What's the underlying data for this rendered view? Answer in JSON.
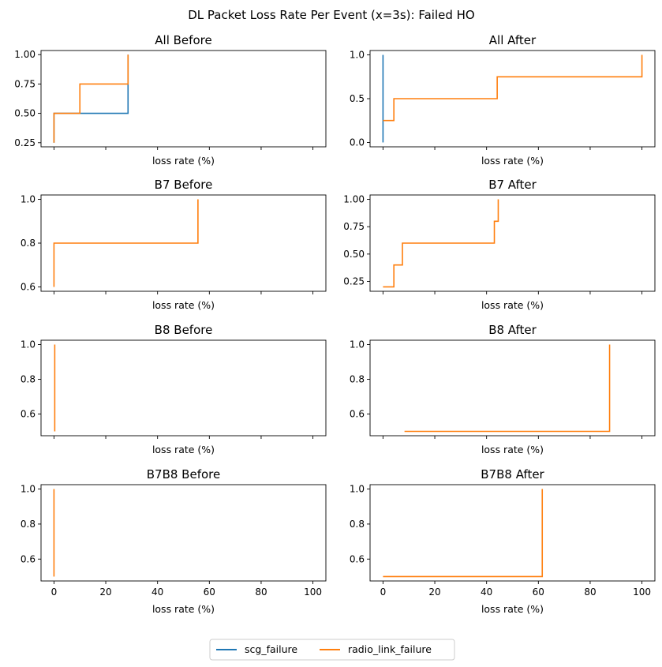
{
  "figure": {
    "title": "DL Packet Loss Rate Per Event (x=3s): Failed HO"
  },
  "legend": [
    {
      "name": "scg_failure",
      "color": "#1f77b4"
    },
    {
      "name": "radio_link_failure",
      "color": "#ff7f0e"
    }
  ],
  "chart_data": [
    {
      "type": "line",
      "title": "All Before",
      "xlabel": "loss rate (%)",
      "ylabel": "",
      "xlim": [
        -5,
        105
      ],
      "ylim": [
        0.215,
        1.035
      ],
      "xticks": [
        0,
        20,
        40,
        60,
        80,
        100
      ],
      "show_xticklabels": false,
      "yticks": [
        0.25,
        0.5,
        0.75,
        1.0
      ],
      "ytick_labels": [
        "0.25",
        "0.50",
        "0.75",
        "1.00"
      ],
      "series": [
        {
          "name": "scg_failure",
          "color": "#1f77b4",
          "x": [
            0,
            0,
            28.6,
            28.6
          ],
          "y": [
            0.25,
            0.5,
            0.5,
            1.0
          ]
        },
        {
          "name": "radio_link_failure",
          "color": "#ff7f0e",
          "x": [
            0,
            0,
            10,
            10,
            28.6,
            28.6
          ],
          "y": [
            0.25,
            0.5,
            0.5,
            0.75,
            0.75,
            1.0
          ]
        }
      ]
    },
    {
      "type": "line",
      "title": "All After",
      "xlabel": "loss rate (%)",
      "ylabel": "",
      "xlim": [
        -5,
        105
      ],
      "ylim": [
        -0.05,
        1.05
      ],
      "xticks": [
        0,
        20,
        40,
        60,
        80,
        100
      ],
      "show_xticklabels": false,
      "yticks": [
        0.0,
        0.5,
        1.0
      ],
      "ytick_labels": [
        "0.0",
        "0.5",
        "1.0"
      ],
      "series": [
        {
          "name": "scg_failure",
          "color": "#1f77b4",
          "x": [
            0,
            0
          ],
          "y": [
            0.0,
            1.0
          ]
        },
        {
          "name": "radio_link_failure",
          "color": "#ff7f0e",
          "x": [
            0,
            4.2,
            4.2,
            44.1,
            44.1,
            100,
            100
          ],
          "y": [
            0.25,
            0.25,
            0.5,
            0.5,
            0.75,
            0.75,
            1.0
          ]
        }
      ]
    },
    {
      "type": "line",
      "title": "B7 Before",
      "xlabel": "loss rate (%)",
      "ylabel": "",
      "xlim": [
        -5,
        105
      ],
      "ylim": [
        0.58,
        1.02
      ],
      "xticks": [
        0,
        20,
        40,
        60,
        80,
        100
      ],
      "show_xticklabels": false,
      "yticks": [
        0.6,
        0.8,
        1.0
      ],
      "ytick_labels": [
        "0.6",
        "0.8",
        "1.0"
      ],
      "series": [
        {
          "name": "radio_link_failure",
          "color": "#ff7f0e",
          "x": [
            0,
            0,
            55.6,
            55.6
          ],
          "y": [
            0.6,
            0.8,
            0.8,
            1.0
          ]
        }
      ]
    },
    {
      "type": "line",
      "title": "B7 After",
      "xlabel": "loss rate (%)",
      "ylabel": "",
      "xlim": [
        -5,
        105
      ],
      "ylim": [
        0.16,
        1.04
      ],
      "xticks": [
        0,
        20,
        40,
        60,
        80,
        100
      ],
      "show_xticklabels": false,
      "yticks": [
        0.25,
        0.5,
        0.75,
        1.0
      ],
      "ytick_labels": [
        "0.25",
        "0.50",
        "0.75",
        "1.00"
      ],
      "series": [
        {
          "name": "radio_link_failure",
          "color": "#ff7f0e",
          "x": [
            0,
            4.2,
            4.2,
            7.5,
            7.5,
            43,
            43,
            44.5,
            44.5
          ],
          "y": [
            0.2,
            0.2,
            0.4,
            0.4,
            0.6,
            0.6,
            0.8,
            0.8,
            1.0
          ]
        }
      ]
    },
    {
      "type": "line",
      "title": "B8 Before",
      "xlabel": "loss rate (%)",
      "ylabel": "",
      "xlim": [
        -5,
        105
      ],
      "ylim": [
        0.475,
        1.025
      ],
      "xticks": [
        0,
        20,
        40,
        60,
        80,
        100
      ],
      "show_xticklabels": false,
      "yticks": [
        0.6,
        0.8,
        1.0
      ],
      "ytick_labels": [
        "0.6",
        "0.8",
        "1.0"
      ],
      "series": [
        {
          "name": "radio_link_failure",
          "color": "#ff7f0e",
          "x": [
            0.3,
            0.3
          ],
          "y": [
            0.5,
            1.0
          ]
        }
      ]
    },
    {
      "type": "line",
      "title": "B8 After",
      "xlabel": "loss rate (%)",
      "ylabel": "",
      "xlim": [
        -5,
        105
      ],
      "ylim": [
        0.475,
        1.025
      ],
      "xticks": [
        0,
        20,
        40,
        60,
        80,
        100
      ],
      "show_xticklabels": false,
      "yticks": [
        0.6,
        0.8,
        1.0
      ],
      "ytick_labels": [
        "0.6",
        "0.8",
        "1.0"
      ],
      "series": [
        {
          "name": "radio_link_failure",
          "color": "#ff7f0e",
          "x": [
            8.3,
            87.5,
            87.5
          ],
          "y": [
            0.5,
            0.5,
            1.0
          ]
        }
      ]
    },
    {
      "type": "line",
      "title": "B7B8 Before",
      "xlabel": "loss rate (%)",
      "ylabel": "",
      "xlim": [
        -5,
        105
      ],
      "ylim": [
        0.475,
        1.025
      ],
      "xticks": [
        0,
        20,
        40,
        60,
        80,
        100
      ],
      "show_xticklabels": true,
      "xtick_labels": [
        "0",
        "20",
        "40",
        "60",
        "80",
        "100"
      ],
      "yticks": [
        0.6,
        0.8,
        1.0
      ],
      "ytick_labels": [
        "0.6",
        "0.8",
        "1.0"
      ],
      "series": [
        {
          "name": "radio_link_failure",
          "color": "#ff7f0e",
          "x": [
            0,
            0
          ],
          "y": [
            0.5,
            1.0
          ]
        }
      ]
    },
    {
      "type": "line",
      "title": "B7B8 After",
      "xlabel": "loss rate (%)",
      "ylabel": "",
      "xlim": [
        -5,
        105
      ],
      "ylim": [
        0.475,
        1.025
      ],
      "xticks": [
        0,
        20,
        40,
        60,
        80,
        100
      ],
      "show_xticklabels": true,
      "xtick_labels": [
        "0",
        "20",
        "40",
        "60",
        "80",
        "100"
      ],
      "yticks": [
        0.6,
        0.8,
        1.0
      ],
      "ytick_labels": [
        "0.6",
        "0.8",
        "1.0"
      ],
      "series": [
        {
          "name": "radio_link_failure",
          "color": "#ff7f0e",
          "x": [
            0,
            61.5,
            61.5
          ],
          "y": [
            0.5,
            0.5,
            1.0
          ]
        }
      ]
    }
  ]
}
